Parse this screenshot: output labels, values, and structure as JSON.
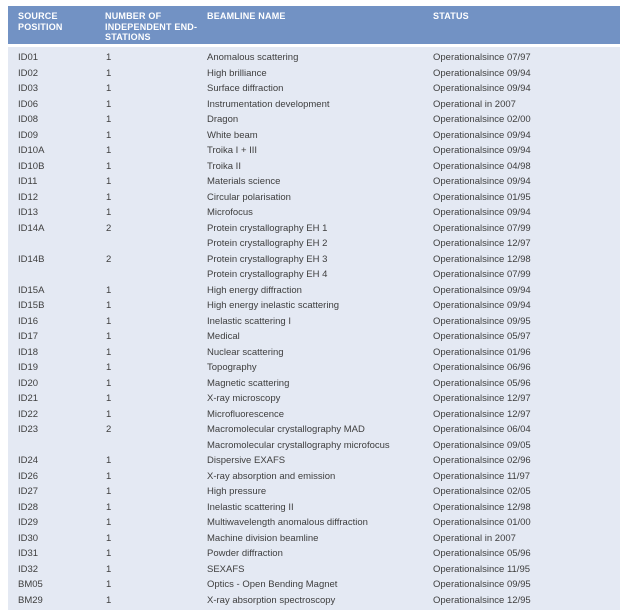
{
  "colors": {
    "header_bg": "#7292c4",
    "body_bg": "#e4e9f3",
    "header_text": "#ffffff",
    "body_text": "#3e3e3e"
  },
  "table": {
    "columns": [
      "SOURCE POSITION",
      "NUMBER OF INDEPENDENT END-STATIONS",
      "BEAMLINE NAME",
      "STATUS"
    ],
    "rows": [
      {
        "source": "ID01",
        "endstations": "1",
        "name": "Anomalous scattering",
        "status": "Operational",
        "since": "since 07/97"
      },
      {
        "source": "ID02",
        "endstations": "1",
        "name": "High brilliance",
        "status": "Operational",
        "since": "since 09/94"
      },
      {
        "source": "ID03",
        "endstations": "1",
        "name": "Surface diffraction",
        "status": "Operational",
        "since": "since 09/94"
      },
      {
        "source": "ID06",
        "endstations": "1",
        "name": "Instrumentation development",
        "status": "Operational in 2007",
        "since": ""
      },
      {
        "source": "ID08",
        "endstations": "1",
        "name": "Dragon",
        "status": "Operational",
        "since": "since 02/00"
      },
      {
        "source": "ID09",
        "endstations": "1",
        "name": "White beam",
        "status": "Operational",
        "since": "since 09/94"
      },
      {
        "source": "ID10A",
        "endstations": "1",
        "name": "Troika I + III",
        "status": "Operational",
        "since": "since 09/94"
      },
      {
        "source": "ID10B",
        "endstations": "1",
        "name": "Troika II",
        "status": "Operational",
        "since": "since 04/98"
      },
      {
        "source": "ID11",
        "endstations": "1",
        "name": "Materials science",
        "status": "Operational",
        "since": "since 09/94"
      },
      {
        "source": "ID12",
        "endstations": "1",
        "name": "Circular polarisation",
        "status": "Operational",
        "since": "since 01/95"
      },
      {
        "source": "ID13",
        "endstations": "1",
        "name": "Microfocus",
        "status": "Operational",
        "since": "since 09/94"
      },
      {
        "source": "ID14A",
        "endstations": "2",
        "name": "Protein crystallography EH 1",
        "status": "Operational",
        "since": "since 07/99"
      },
      {
        "source": "",
        "endstations": "",
        "name": "Protein crystallography EH 2",
        "status": "Operational",
        "since": "since 12/97"
      },
      {
        "source": "ID14B",
        "endstations": "2",
        "name": "Protein crystallography EH 3",
        "status": "Operational",
        "since": "since 12/98"
      },
      {
        "source": "",
        "endstations": "",
        "name": "Protein crystallography EH 4",
        "status": "Operational",
        "since": "since 07/99"
      },
      {
        "source": "ID15A",
        "endstations": "1",
        "name": "High energy diffraction",
        "status": "Operational",
        "since": "since 09/94"
      },
      {
        "source": "ID15B",
        "endstations": "1",
        "name": "High energy inelastic scattering",
        "status": "Operational",
        "since": "since 09/94"
      },
      {
        "source": "ID16",
        "endstations": "1",
        "name": "Inelastic scattering I",
        "status": "Operational",
        "since": "since 09/95"
      },
      {
        "source": "ID17",
        "endstations": "1",
        "name": "Medical",
        "status": "Operational",
        "since": "since 05/97"
      },
      {
        "source": "ID18",
        "endstations": "1",
        "name": "Nuclear scattering",
        "status": "Operational",
        "since": "since 01/96"
      },
      {
        "source": "ID19",
        "endstations": "1",
        "name": "Topography",
        "status": "Operational",
        "since": "since 06/96"
      },
      {
        "source": "ID20",
        "endstations": "1",
        "name": "Magnetic scattering",
        "status": "Operational",
        "since": "since 05/96"
      },
      {
        "source": "ID21",
        "endstations": "1",
        "name": "X-ray microscopy",
        "status": "Operational",
        "since": "since 12/97"
      },
      {
        "source": "ID22",
        "endstations": "1",
        "name": "Microfluorescence",
        "status": "Operational",
        "since": "since 12/97"
      },
      {
        "source": "ID23",
        "endstations": "2",
        "name": "Macromolecular crystallography MAD",
        "status": "Operational",
        "since": "since 06/04"
      },
      {
        "source": "",
        "endstations": "",
        "name": "Macromolecular crystallography microfocus",
        "status": "Operational",
        "since": "since 09/05"
      },
      {
        "source": "ID24",
        "endstations": "1",
        "name": "Dispersive EXAFS",
        "status": "Operational",
        "since": "since 02/96"
      },
      {
        "source": "ID26",
        "endstations": "1",
        "name": "X-ray absorption and emission",
        "status": "Operational",
        "since": "since 11/97"
      },
      {
        "source": "ID27",
        "endstations": "1",
        "name": "High pressure",
        "status": "Operational",
        "since": "since 02/05"
      },
      {
        "source": "ID28",
        "endstations": "1",
        "name": "Inelastic scattering II",
        "status": "Operational",
        "since": "since 12/98"
      },
      {
        "source": "ID29",
        "endstations": "1",
        "name": "Multiwavelength anomalous diffraction",
        "status": "Operational",
        "since": "since 01/00"
      },
      {
        "source": "ID30",
        "endstations": "1",
        "name": "Machine division beamline",
        "status": "Operational in 2007",
        "since": ""
      },
      {
        "source": "ID31",
        "endstations": "1",
        "name": "Powder diffraction",
        "status": "Operational",
        "since": "since 05/96"
      },
      {
        "source": "ID32",
        "endstations": "1",
        "name": "SEXAFS",
        "status": "Operational",
        "since": "since 11/95"
      },
      {
        "source": "BM05",
        "endstations": "1",
        "name": "Optics - Open Bending Magnet",
        "status": "Operational",
        "since": "since 09/95"
      },
      {
        "source": "BM29",
        "endstations": "1",
        "name": "X-ray absorption spectroscopy",
        "status": "Operational",
        "since": "since 12/95"
      }
    ]
  }
}
